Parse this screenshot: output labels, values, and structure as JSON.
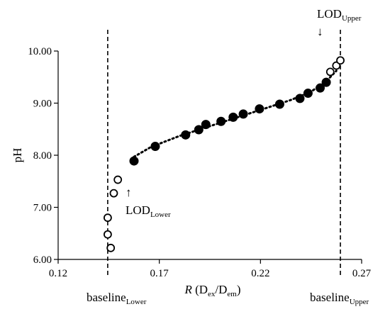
{
  "chart_data": {
    "type": "scatter",
    "xlabel": "R (Dex/Dem)",
    "xlabel_parts": {
      "var": "R",
      "open": " (D",
      "sub1": "ex",
      "mid": "/D",
      "sub2": "em",
      "close": ")"
    },
    "ylabel": "pH",
    "xlim": [
      0.12,
      0.27
    ],
    "ylim": [
      6.0,
      10.0
    ],
    "x_ticks": [
      0.12,
      0.17,
      0.22,
      0.27
    ],
    "x_tick_labels": [
      "0.12",
      "0.17",
      "0.22",
      "0.27"
    ],
    "y_ticks": [
      6.0,
      7.0,
      8.0,
      9.0,
      10.0
    ],
    "y_tick_labels": [
      "6.00",
      "7.00",
      "8.00",
      "9.00",
      "10.00"
    ],
    "grid": false,
    "series": [
      {
        "marker": "open-circle",
        "points": [
          {
            "x": 0.1445,
            "y": 6.8
          },
          {
            "x": 0.1445,
            "y": 6.48
          },
          {
            "x": 0.146,
            "y": 6.22
          },
          {
            "x": 0.1475,
            "y": 7.27
          },
          {
            "x": 0.1495,
            "y": 7.53
          },
          {
            "x": 0.2545,
            "y": 9.6
          },
          {
            "x": 0.2575,
            "y": 9.72
          },
          {
            "x": 0.2595,
            "y": 9.82
          }
        ]
      },
      {
        "marker": "filled-circle",
        "points": [
          {
            "x": 0.1575,
            "y": 7.89
          },
          {
            "x": 0.168,
            "y": 8.17
          },
          {
            "x": 0.183,
            "y": 8.39
          },
          {
            "x": 0.1895,
            "y": 8.49
          },
          {
            "x": 0.193,
            "y": 8.59
          },
          {
            "x": 0.2005,
            "y": 8.65
          },
          {
            "x": 0.2065,
            "y": 8.73
          },
          {
            "x": 0.2115,
            "y": 8.79
          },
          {
            "x": 0.2195,
            "y": 8.89
          },
          {
            "x": 0.2295,
            "y": 8.98
          },
          {
            "x": 0.2395,
            "y": 9.09
          },
          {
            "x": 0.2435,
            "y": 9.19
          },
          {
            "x": 0.2495,
            "y": 9.29
          },
          {
            "x": 0.2525,
            "y": 9.4
          }
        ]
      }
    ],
    "trendline": {
      "style": "dotted",
      "points": [
        {
          "x": 0.1575,
          "y": 7.97
        },
        {
          "x": 0.166,
          "y": 8.16
        },
        {
          "x": 0.18,
          "y": 8.37
        },
        {
          "x": 0.2,
          "y": 8.62
        },
        {
          "x": 0.22,
          "y": 8.87
        },
        {
          "x": 0.235,
          "y": 9.06
        },
        {
          "x": 0.245,
          "y": 9.22
        },
        {
          "x": 0.2525,
          "y": 9.42
        },
        {
          "x": 0.2575,
          "y": 9.62
        }
      ]
    },
    "vertical_lines": [
      {
        "x": 0.1445,
        "style": "dashed",
        "label_main": "baseline",
        "label_sub": "Lower"
      },
      {
        "x": 0.2595,
        "style": "dashed",
        "label_main": "baseline",
        "label_sub": "Upper"
      }
    ],
    "annotations": [
      {
        "id": "lod-lower",
        "label_main": "LOD",
        "label_sub": "Lower",
        "arrow": "↑"
      },
      {
        "id": "lod-upper",
        "label_main": "LOD",
        "label_sub": "Upper",
        "arrow": "↓"
      }
    ]
  }
}
